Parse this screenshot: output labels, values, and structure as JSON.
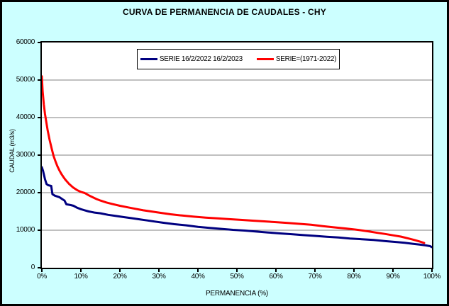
{
  "window": {
    "title": "CURVA DE PERMANENCIA DE CAUDALES - CHY"
  },
  "colors": {
    "background": "#CCFFFF",
    "plot_background": "#FFFFFF",
    "gridline": "#808080",
    "axis": "#000000",
    "series_blue": "#000080",
    "series_red": "#FF0000"
  },
  "chart_data": {
    "type": "line",
    "title": "CURVA DE PERMANENCIA DE CAUDALES - CHY",
    "xlabel": "PERMANENCIA (%)",
    "ylabel": "CAUDAL (m3/s)",
    "xlim": [
      0,
      100
    ],
    "ylim": [
      0,
      60000
    ],
    "grid": "horizontal",
    "legend_position": "top-center-inside",
    "x_ticks": [
      [
        0,
        "0%"
      ],
      [
        10,
        "10%"
      ],
      [
        20,
        "20%"
      ],
      [
        30,
        "30%"
      ],
      [
        40,
        "40%"
      ],
      [
        50,
        "50%"
      ],
      [
        60,
        "60%"
      ],
      [
        70,
        "70%"
      ],
      [
        80,
        "80%"
      ],
      [
        90,
        "90%"
      ],
      [
        100,
        "100%"
      ]
    ],
    "y_ticks": [
      [
        0,
        "0"
      ],
      [
        10000,
        "10000"
      ],
      [
        20000,
        "20000"
      ],
      [
        30000,
        "30000"
      ],
      [
        40000,
        "40000"
      ],
      [
        50000,
        "50000"
      ],
      [
        60000,
        "60000"
      ]
    ],
    "series": [
      {
        "name": "SERIE 16/2/2022 16/2/2023",
        "color": "#000080",
        "points": [
          [
            0,
            26800
          ],
          [
            0.3,
            25800
          ],
          [
            0.8,
            23600
          ],
          [
            1.2,
            22300
          ],
          [
            1.6,
            22000
          ],
          [
            2.4,
            21800
          ],
          [
            2.7,
            19600
          ],
          [
            3.3,
            19200
          ],
          [
            4.5,
            18800
          ],
          [
            5.2,
            18300
          ],
          [
            5.8,
            17900
          ],
          [
            6.3,
            16900
          ],
          [
            7.4,
            16700
          ],
          [
            8.1,
            16500
          ],
          [
            9,
            16000
          ],
          [
            10,
            15600
          ],
          [
            11,
            15300
          ],
          [
            12,
            15000
          ],
          [
            13.5,
            14700
          ],
          [
            15,
            14500
          ],
          [
            17,
            14100
          ],
          [
            19,
            13800
          ],
          [
            21,
            13500
          ],
          [
            23,
            13200
          ],
          [
            25,
            12900
          ],
          [
            27,
            12600
          ],
          [
            29,
            12300
          ],
          [
            31,
            12000
          ],
          [
            34,
            11600
          ],
          [
            37,
            11300
          ],
          [
            40,
            10900
          ],
          [
            43,
            10600
          ],
          [
            46,
            10350
          ],
          [
            49,
            10100
          ],
          [
            52,
            9900
          ],
          [
            55,
            9650
          ],
          [
            58,
            9400
          ],
          [
            61,
            9150
          ],
          [
            64,
            8950
          ],
          [
            67,
            8700
          ],
          [
            70,
            8500
          ],
          [
            73,
            8250
          ],
          [
            76,
            8050
          ],
          [
            79,
            7800
          ],
          [
            82,
            7600
          ],
          [
            85,
            7400
          ],
          [
            88,
            7100
          ],
          [
            91,
            6850
          ],
          [
            93,
            6650
          ],
          [
            95,
            6400
          ],
          [
            97,
            6150
          ],
          [
            98.5,
            5950
          ],
          [
            99.5,
            5750
          ],
          [
            100,
            5500
          ]
        ]
      },
      {
        "name": "SERIE=(1971-2022)",
        "color": "#FF0000",
        "points": [
          [
            0,
            51000
          ],
          [
            0.2,
            47000
          ],
          [
            0.5,
            43500
          ],
          [
            0.8,
            41000
          ],
          [
            1.1,
            39000
          ],
          [
            1.5,
            36500
          ],
          [
            2,
            34000
          ],
          [
            2.5,
            31800
          ],
          [
            3,
            29800
          ],
          [
            3.5,
            28300
          ],
          [
            4,
            27000
          ],
          [
            4.5,
            25900
          ],
          [
            5,
            25000
          ],
          [
            5.5,
            24200
          ],
          [
            6,
            23500
          ],
          [
            7,
            22300
          ],
          [
            8,
            21400
          ],
          [
            9,
            20700
          ],
          [
            10,
            20200
          ],
          [
            11,
            19900
          ],
          [
            12,
            19300
          ],
          [
            13,
            18800
          ],
          [
            14,
            18300
          ],
          [
            15,
            17900
          ],
          [
            16.5,
            17400
          ],
          [
            18,
            17000
          ],
          [
            20,
            16500
          ],
          [
            22,
            16100
          ],
          [
            24,
            15700
          ],
          [
            26,
            15300
          ],
          [
            28,
            15000
          ],
          [
            30,
            14700
          ],
          [
            33,
            14250
          ],
          [
            36,
            13900
          ],
          [
            39,
            13600
          ],
          [
            42,
            13350
          ],
          [
            45,
            13150
          ],
          [
            48,
            12950
          ],
          [
            51,
            12750
          ],
          [
            54,
            12550
          ],
          [
            57,
            12350
          ],
          [
            60,
            12150
          ],
          [
            63,
            11950
          ],
          [
            66,
            11700
          ],
          [
            69,
            11450
          ],
          [
            72,
            11100
          ],
          [
            75,
            10750
          ],
          [
            78,
            10450
          ],
          [
            81,
            10100
          ],
          [
            84,
            9650
          ],
          [
            86,
            9300
          ],
          [
            88,
            9000
          ],
          [
            90,
            8650
          ],
          [
            92,
            8300
          ],
          [
            94,
            7800
          ],
          [
            95.5,
            7400
          ],
          [
            97,
            6950
          ],
          [
            98,
            6600
          ]
        ]
      }
    ]
  }
}
